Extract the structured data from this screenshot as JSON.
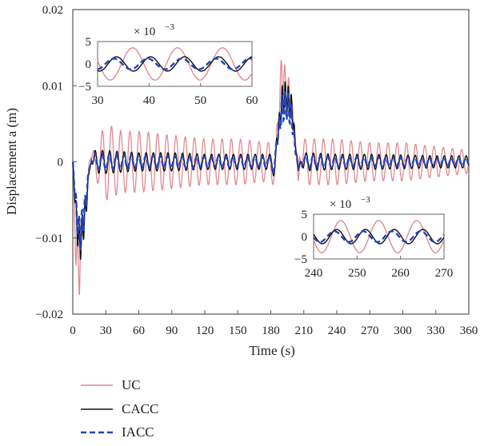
{
  "chart_data": {
    "type": "line",
    "xlabel": "Time (s)",
    "ylabel": "Displacement a (m)",
    "xlim": [
      0,
      360
    ],
    "ylim": [
      -0.02,
      0.02
    ],
    "xticks": [
      0,
      30,
      60,
      90,
      120,
      150,
      180,
      210,
      240,
      270,
      300,
      330,
      360
    ],
    "xtick_labels": [
      "0",
      "30",
      "60",
      "90",
      "120",
      "150",
      "180",
      "210",
      "240",
      "270",
      "300",
      "330",
      "360"
    ],
    "yticks": [
      -0.02,
      -0.01,
      0,
      0.01,
      0.02
    ],
    "ytick_labels": [
      "−0.02",
      "−0.01",
      "0",
      "0.01",
      "0.02"
    ],
    "grid": false,
    "legend_position": "bottom-left, below plot",
    "series": [
      {
        "name": "UC",
        "color": "#e08a92",
        "style": "solid",
        "x": [
          0,
          3,
          6,
          9,
          12,
          15,
          20,
          30,
          45,
          60,
          90,
          120,
          150,
          180,
          186,
          190,
          193,
          196,
          199,
          202,
          205,
          210,
          240,
          270,
          300,
          330,
          360
        ],
        "y": [
          0,
          -0.012,
          -0.014,
          -0.008,
          -0.006,
          0,
          0.002,
          0.005,
          0.004,
          0.004,
          0.0035,
          0.003,
          0.003,
          0.0025,
          0.004,
          0.012,
          0.01,
          0.009,
          0.007,
          0.003,
          -0.002,
          0.003,
          0.003,
          0.0025,
          0.0025,
          0.002,
          0.0015
        ],
        "envelope": true
      },
      {
        "name": "CACC",
        "color": "#111111",
        "style": "solid",
        "x": [
          0,
          3,
          6,
          9,
          12,
          15,
          20,
          30,
          60,
          90,
          120,
          150,
          180,
          186,
          190,
          193,
          196,
          199,
          202,
          205,
          210,
          240,
          270,
          300,
          330,
          360
        ],
        "y": [
          0,
          -0.007,
          -0.011,
          -0.009,
          -0.006,
          -0.001,
          0.0015,
          0.0015,
          0.0012,
          0.0012,
          0.001,
          0.001,
          0.001,
          0.003,
          0.008,
          0.0085,
          0.008,
          0.007,
          0.003,
          -0.001,
          0.0012,
          0.001,
          0.001,
          0.0009,
          0.0008,
          0.0008
        ],
        "envelope": true
      },
      {
        "name": "IACC",
        "color": "#2244bb",
        "style": "dashed",
        "x": [
          0,
          3,
          6,
          9,
          12,
          15,
          20,
          30,
          60,
          90,
          120,
          150,
          180,
          186,
          190,
          193,
          196,
          199,
          202,
          205,
          210,
          240,
          270,
          300,
          330,
          360
        ],
        "y": [
          0,
          -0.006,
          -0.01,
          -0.008,
          -0.005,
          -0.0008,
          0.001,
          0.001,
          0.0008,
          0.0008,
          0.0007,
          0.0007,
          0.0007,
          0.003,
          0.007,
          0.0075,
          0.0072,
          0.006,
          0.002,
          -0.0008,
          0.0008,
          0.0007,
          0.0006,
          0.0006,
          0.0005,
          0.0005
        ],
        "envelope": true
      }
    ],
    "insets": [
      {
        "multiplier_label": "× 10",
        "multiplier_exponent": "−3",
        "xlim": [
          30,
          60
        ],
        "ylim": [
          -5,
          5
        ],
        "xticks": [
          30,
          40,
          50,
          60
        ],
        "yticks": [
          -5,
          0,
          5
        ],
        "ytick_labels": [
          "−5",
          "0",
          "5"
        ]
      },
      {
        "multiplier_label": "× 10",
        "multiplier_exponent": "−3",
        "xlim": [
          240,
          270
        ],
        "ylim": [
          -5,
          5
        ],
        "xticks": [
          240,
          250,
          260,
          270
        ],
        "yticks": [
          -5,
          0,
          5
        ],
        "ytick_labels": [
          "−5",
          "0",
          "5"
        ]
      }
    ]
  }
}
